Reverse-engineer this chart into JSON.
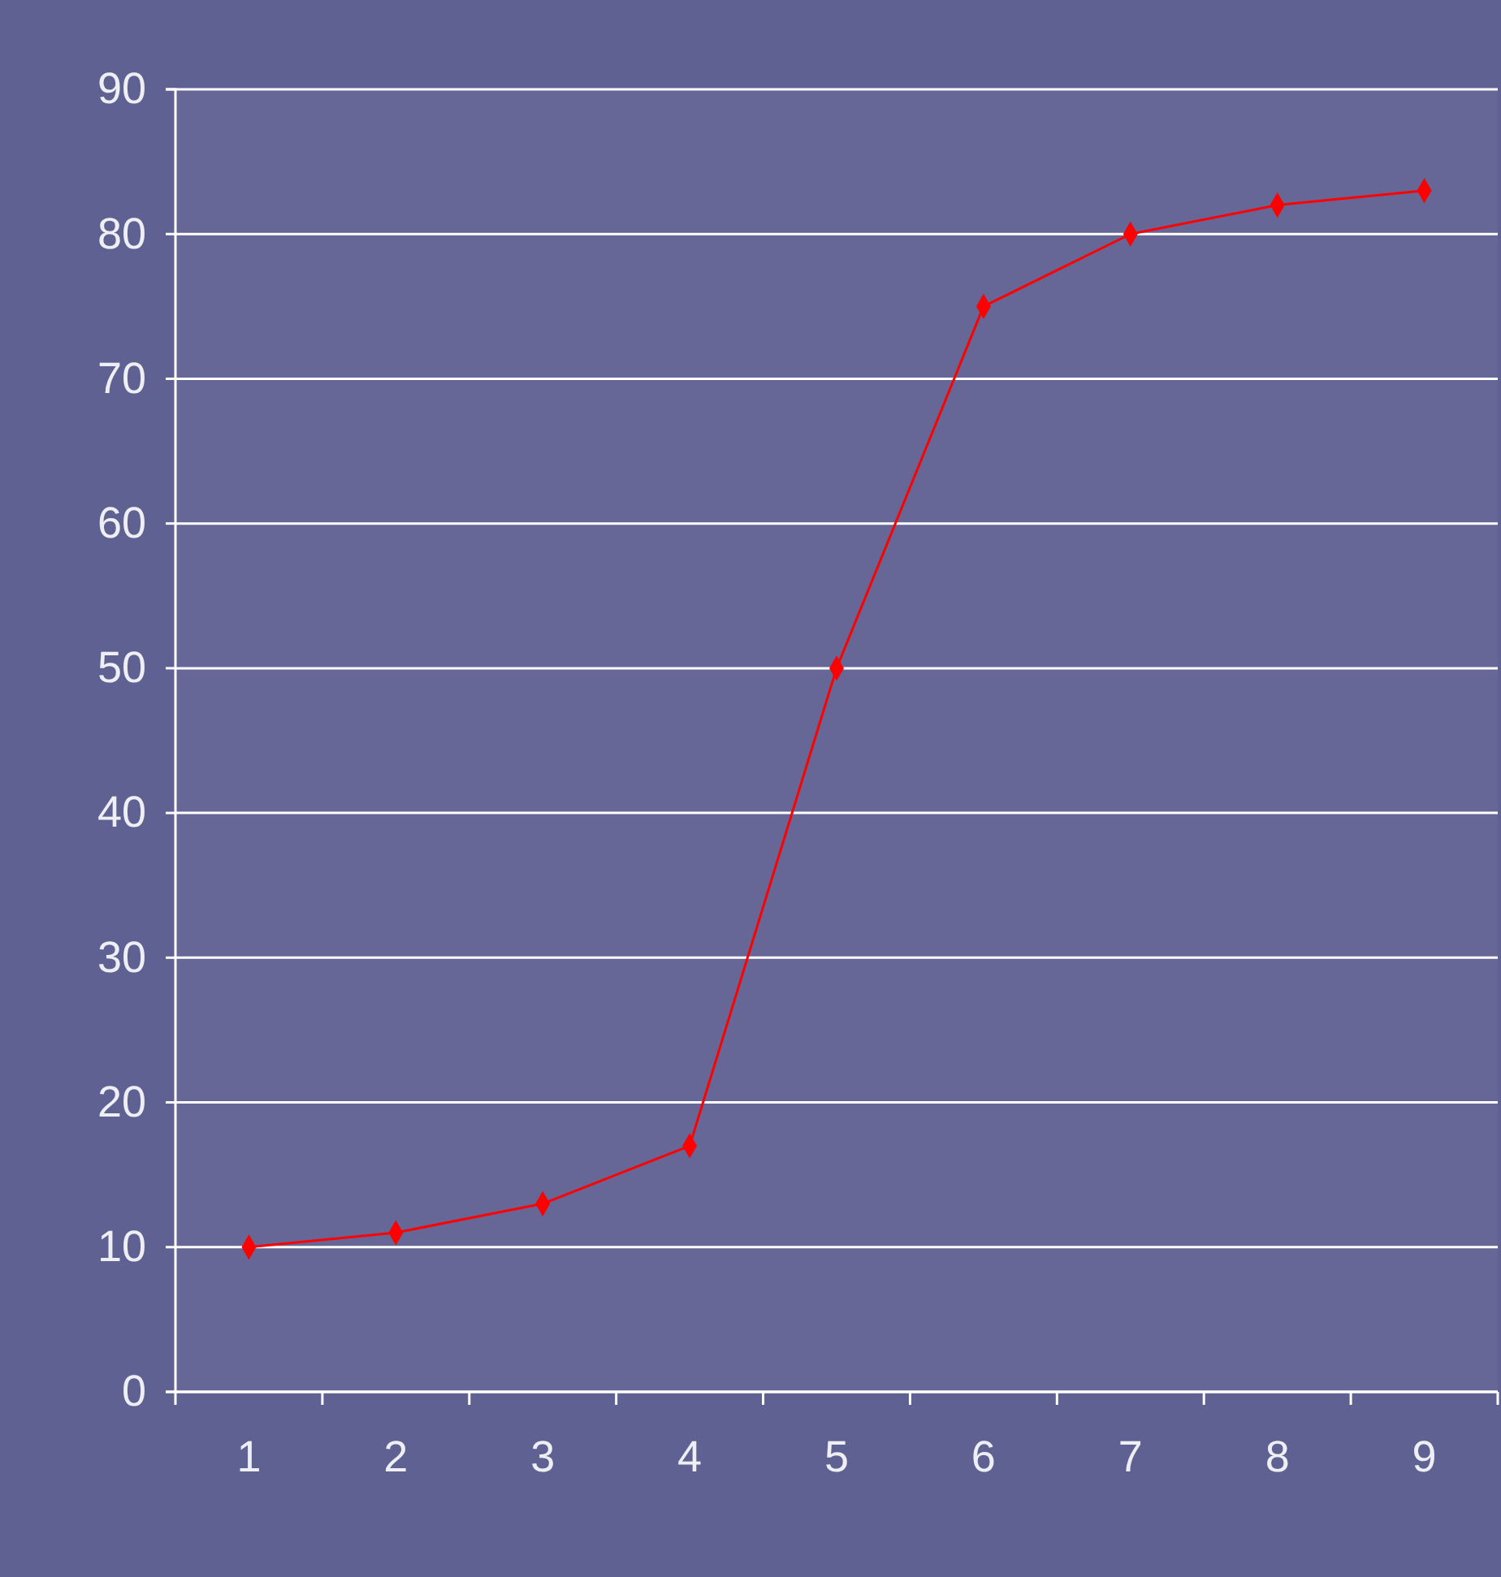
{
  "chart_data": {
    "type": "line",
    "categories": [
      "1",
      "2",
      "3",
      "4",
      "5",
      "6",
      "7",
      "8",
      "9"
    ],
    "series": [
      {
        "color": "#ff0000",
        "values": [
          10,
          11,
          13,
          17,
          50,
          75,
          80,
          82,
          83
        ]
      }
    ],
    "ylim": [
      0,
      90
    ],
    "yticks": [
      0,
      10,
      20,
      30,
      40,
      50,
      60,
      70,
      80,
      90
    ],
    "grid": "y",
    "marker": "diamond",
    "line_style": "solid"
  }
}
